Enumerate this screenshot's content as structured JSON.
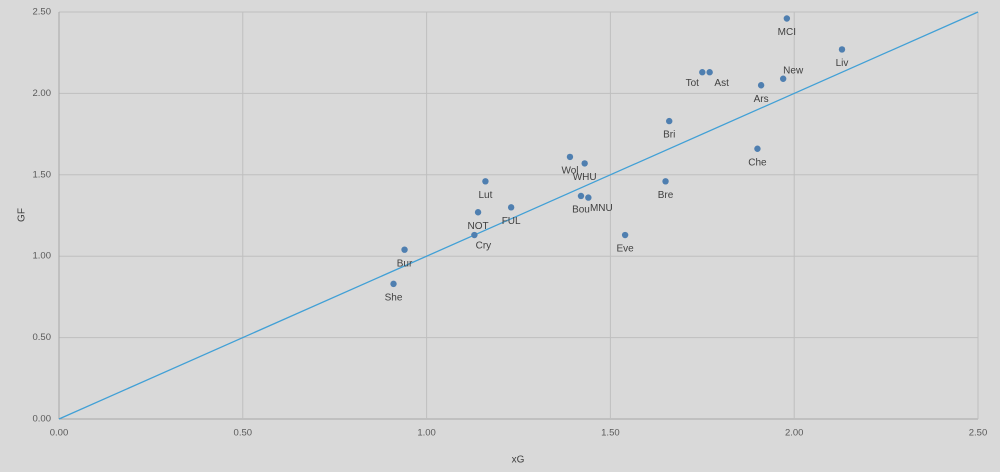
{
  "chart_data": {
    "type": "scatter",
    "x_label": "xG",
    "y_label": "GF",
    "point_labels": [
      "MCI",
      "Liv",
      "New",
      "Ars",
      "Tot",
      "Ast",
      "Bri",
      "Che",
      "Wol",
      "WHU",
      "Bre",
      "Lut",
      "FUL",
      "Bou",
      "MNU",
      "NOT",
      "Cry",
      "Eve",
      "Bur",
      "She"
    ],
    "x": [
      1.98,
      2.13,
      1.97,
      1.91,
      1.75,
      1.77,
      1.66,
      1.9,
      1.39,
      1.43,
      1.65,
      1.16,
      1.23,
      1.42,
      1.44,
      1.14,
      1.13,
      1.54,
      0.94,
      0.91
    ],
    "values": [
      2.46,
      2.27,
      2.09,
      2.05,
      2.13,
      2.13,
      1.83,
      1.66,
      1.61,
      1.57,
      1.46,
      1.46,
      1.3,
      1.37,
      1.36,
      1.27,
      1.13,
      1.13,
      1.04,
      0.83
    ],
    "color": "#4f7fb0",
    "reference_line": {
      "x": [
        0,
        2.5
      ],
      "y": [
        0,
        2.5
      ],
      "color": "#41a0d6"
    },
    "xlim": [
      0,
      2.5
    ],
    "ylim": [
      0,
      2.5
    ],
    "xticks": [
      {
        "value": 0,
        "label": "0.00"
      },
      {
        "value": 0.5,
        "label": "0.50"
      },
      {
        "value": 1,
        "label": "1.00"
      },
      {
        "value": 1.5,
        "label": "1.50"
      },
      {
        "value": 2,
        "label": "2.00"
      },
      {
        "value": 2.5,
        "label": "2.50"
      }
    ],
    "yticks": [
      {
        "value": 0,
        "label": "0.00"
      },
      {
        "value": 0.5,
        "label": "0.50"
      },
      {
        "value": 1,
        "label": "1.00"
      },
      {
        "value": 1.5,
        "label": "1.50"
      },
      {
        "value": 2,
        "label": "2.00"
      },
      {
        "value": 2.5,
        "label": "2.50"
      }
    ],
    "grid": true
  }
}
